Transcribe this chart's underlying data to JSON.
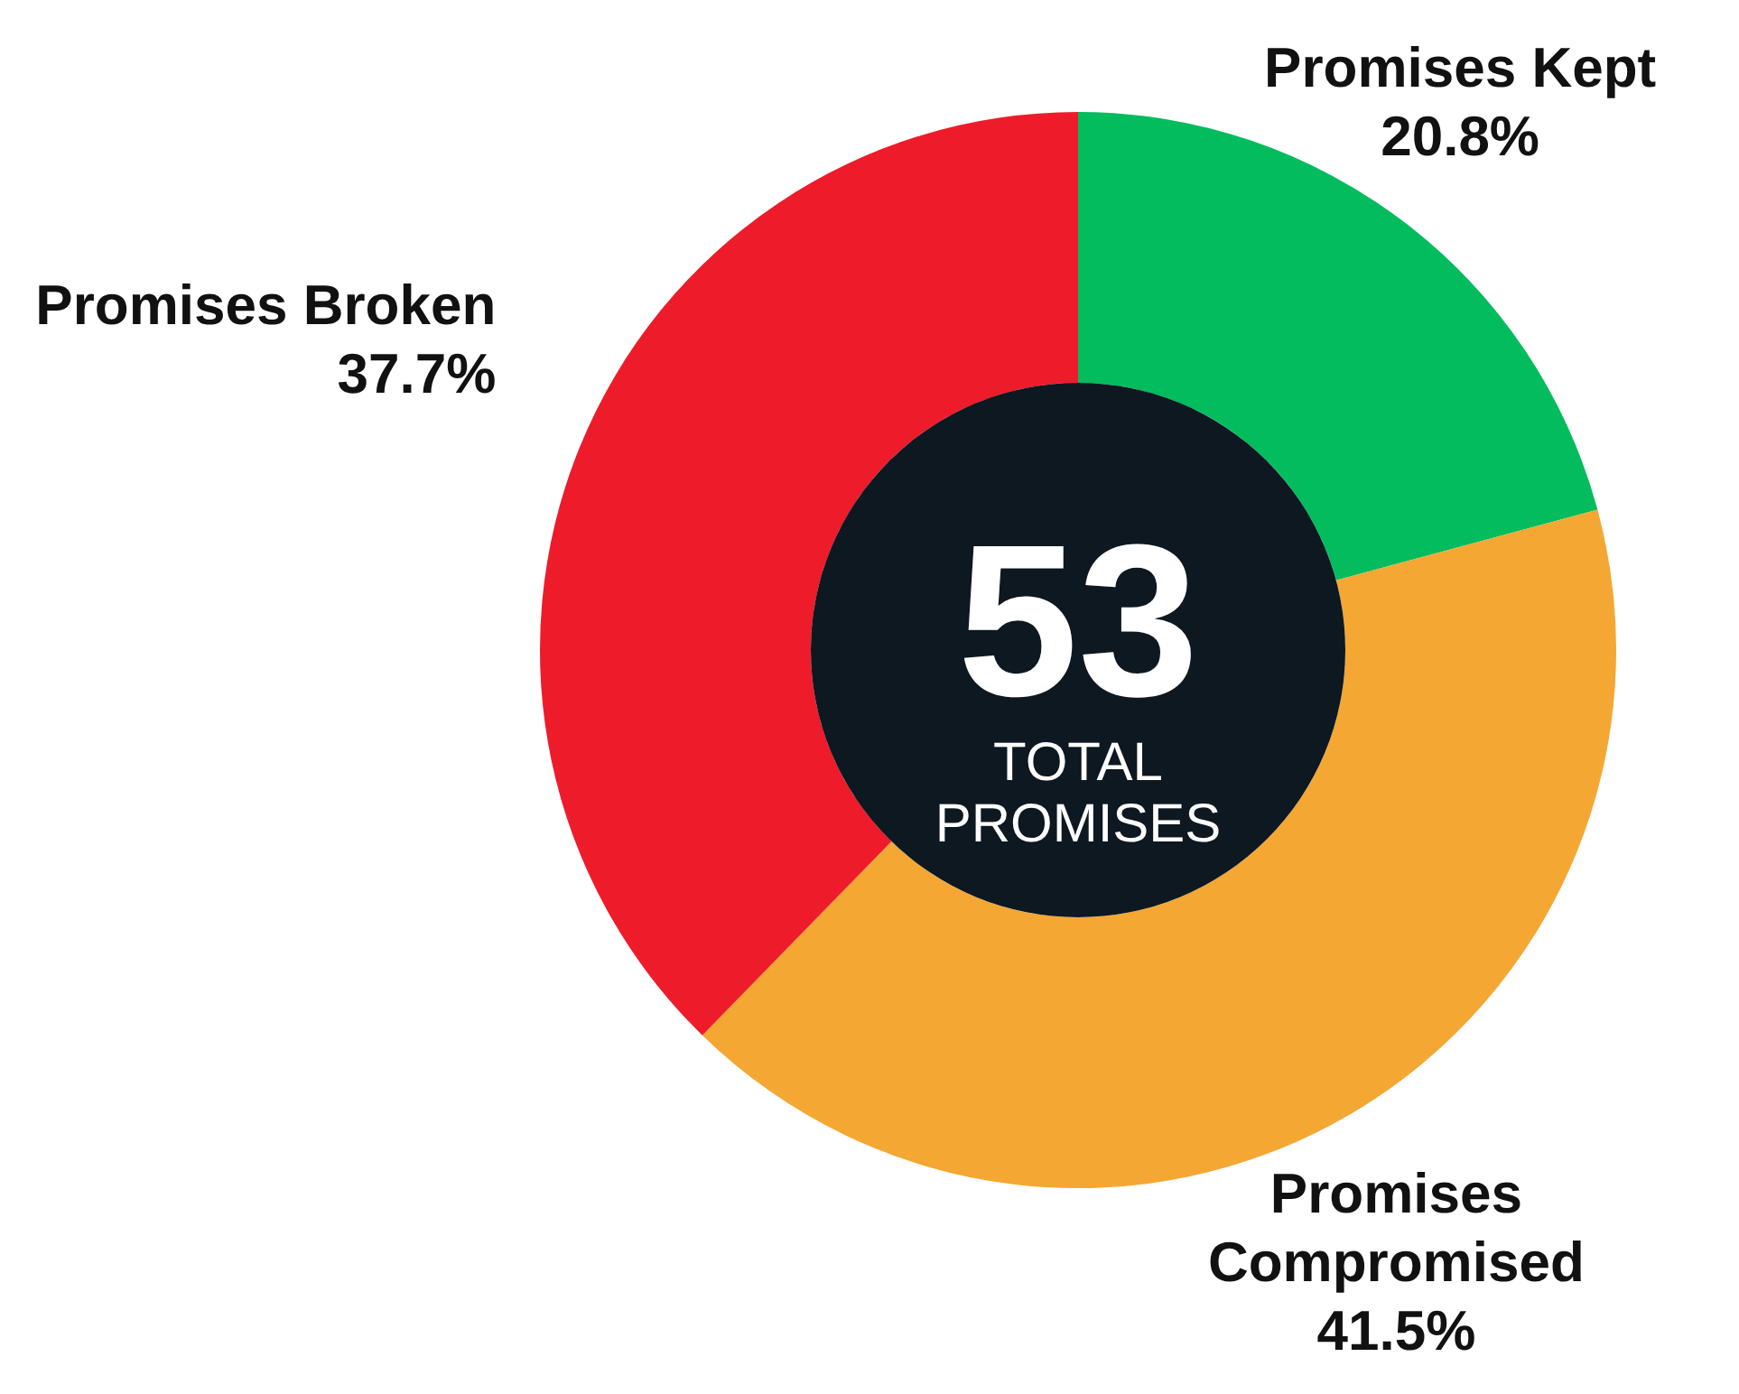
{
  "chart_data": {
    "type": "donut",
    "categories": [
      "Promises Kept",
      "Promises Compromised",
      "Promises Broken"
    ],
    "values": [
      20.8,
      41.5,
      37.7
    ],
    "colors": [
      "#02bc5e",
      "#f4a733",
      "#ee1c2b"
    ],
    "value_labels": [
      "20.8%",
      "41.5%",
      "37.7%"
    ],
    "annotations": [
      "53",
      "TOTAL PROMISES"
    ],
    "legend": false
  }
}
